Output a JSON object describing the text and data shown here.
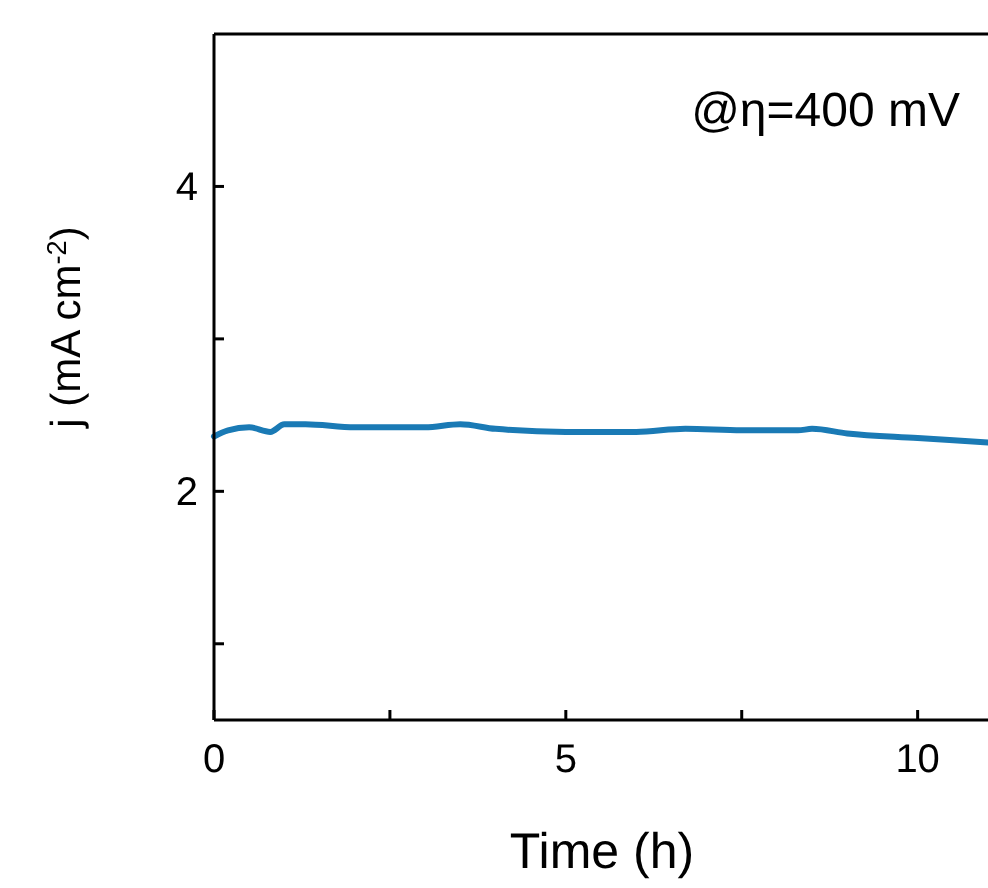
{
  "chart_data": {
    "type": "line",
    "xlabel": "Time (h)",
    "ylabel": "j (mA cm$^{-2}$)",
    "annotations": [
      "@η=400 mV"
    ],
    "xlim": [
      0,
      11
    ],
    "ylim": [
      0.5,
      5
    ],
    "xticks": [
      0,
      {
        "value": 2.5,
        "label": null
      },
      5,
      {
        "value": 7.5,
        "label": null
      },
      10
    ],
    "yticks": [
      {
        "value": 1,
        "label": null
      },
      2,
      {
        "value": 3,
        "label": null
      },
      4
    ],
    "series": [
      {
        "color": "#1a7ab5",
        "x": [
          0,
          0.2,
          0.5,
          0.8,
          1.0,
          1.3,
          2,
          3,
          3.5,
          4,
          5,
          6,
          6.7,
          7.5,
          8.3,
          8.5,
          9,
          10,
          11
        ],
        "values": [
          2.36,
          2.4,
          2.42,
          2.39,
          2.44,
          2.44,
          2.42,
          2.42,
          2.44,
          2.41,
          2.39,
          2.39,
          2.41,
          2.4,
          2.4,
          2.41,
          2.38,
          2.35,
          2.32
        ]
      }
    ],
    "grid": false,
    "marker": "none",
    "line_style": "solid"
  }
}
